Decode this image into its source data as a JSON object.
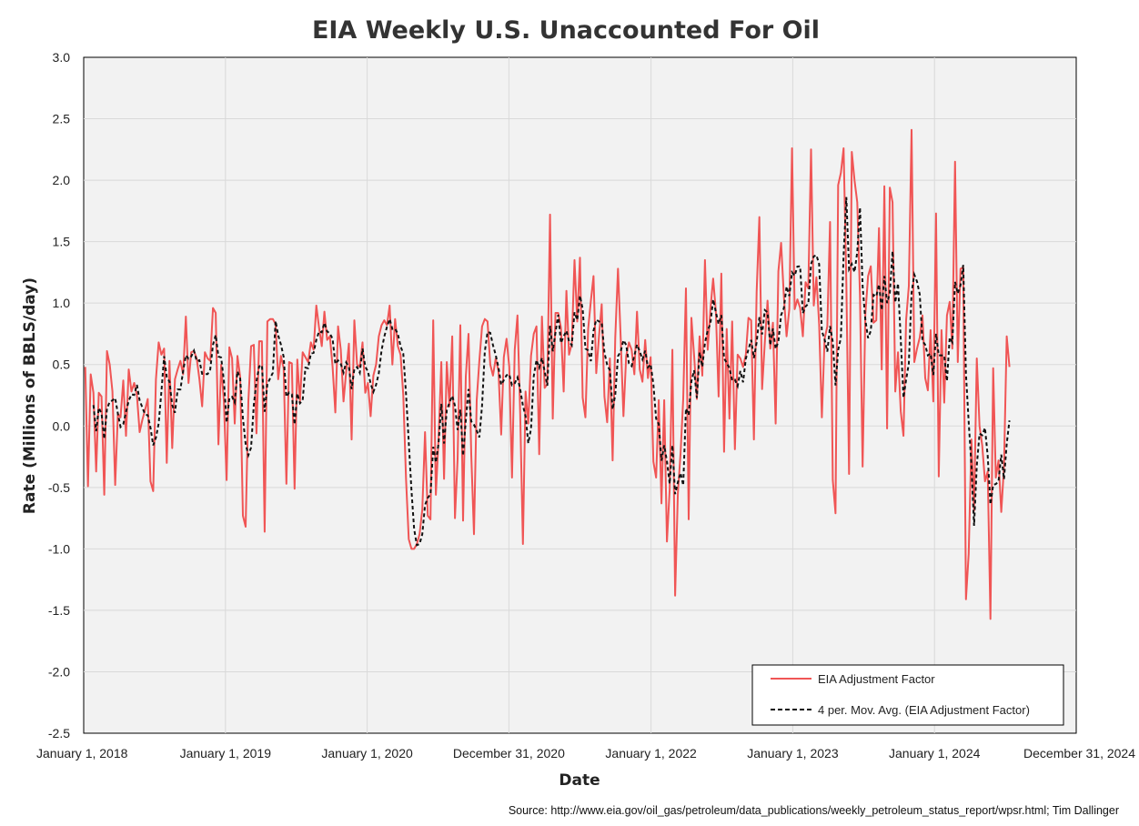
{
  "chart_data": {
    "type": "line",
    "title": "EIA Weekly U.S. Unaccounted For Oil",
    "xlabel": "Date",
    "ylabel": "Rate (Millions of BBLS/day)",
    "source": "Source: http://www.eia.gov/oil_gas/petroleum/data_publications/weekly_petroleum_status_report/wpsr.html; Tim Dallinger",
    "ylim": [
      -2.5,
      3.0
    ],
    "xlim": [
      "2018-01-01",
      "2024-12-31"
    ],
    "grid": true,
    "legend_position": "bottom-right",
    "x_tick_labels": [
      "January 1, 2018",
      "January 1, 2019",
      "January 1, 2020",
      "December 31, 2020",
      "January 1, 2022",
      "January 1, 2023",
      "January 1, 2024",
      "December 31, 2024"
    ],
    "y_tick_labels": [
      "3.0",
      "2.5",
      "2.0",
      "1.5",
      "1.0",
      "0.5",
      "0.0",
      "-0.5",
      "-1.0",
      "-1.5",
      "-2.0",
      "-2.5"
    ],
    "y_ticks": [
      3.0,
      2.5,
      2.0,
      1.5,
      1.0,
      0.5,
      0.0,
      -0.5,
      -1.0,
      -1.5,
      -2.0,
      -2.5
    ],
    "x_tick_dates": [
      "2018-01-01",
      "2019-01-01",
      "2020-01-01",
      "2020-12-31",
      "2022-01-01",
      "2023-01-01",
      "2024-01-01",
      "2024-12-31"
    ],
    "series": [
      {
        "name": "EIA Adjustment Factor",
        "color": "#f05555",
        "dash": "solid",
        "start_date": "2018-01-05",
        "interval_days": 7,
        "values": [
          0.48,
          -0.49,
          0.42,
          0.27,
          -0.37,
          0.27,
          0.24,
          -0.56,
          0.61,
          0.5,
          0.28,
          -0.48,
          0.1,
          0.07,
          0.37,
          -0.08,
          0.46,
          0.28,
          0.35,
          0.25,
          -0.05,
          0.05,
          0.13,
          0.22,
          -0.45,
          -0.53,
          0.38,
          0.68,
          0.58,
          0.63,
          -0.3,
          0.53,
          -0.18,
          0.38,
          0.46,
          0.53,
          0.42,
          0.89,
          0.35,
          0.6,
          0.61,
          0.55,
          0.38,
          0.16,
          0.6,
          0.55,
          0.53,
          0.96,
          0.92,
          -0.15,
          0.5,
          0.2,
          -0.44,
          0.64,
          0.55,
          0.02,
          0.57,
          0.4,
          -0.73,
          -0.82,
          0.2,
          0.65,
          0.66,
          -0.06,
          0.69,
          0.69,
          -0.86,
          0.85,
          0.87,
          0.87,
          0.83,
          0.38,
          0.57,
          0.47,
          -0.47,
          0.52,
          0.51,
          -0.51,
          0.54,
          0.2,
          0.6,
          0.56,
          0.52,
          0.68,
          0.62,
          0.98,
          0.8,
          0.65,
          0.93,
          0.7,
          0.73,
          0.48,
          0.11,
          0.81,
          0.62,
          0.2,
          0.44,
          0.67,
          -0.11,
          0.86,
          0.5,
          0.48,
          0.68,
          0.27,
          0.35,
          0.08,
          0.41,
          0.5,
          0.73,
          0.82,
          0.86,
          0.82,
          0.98,
          0.5,
          0.87,
          0.65,
          0.58,
          0.25,
          -0.43,
          -0.92,
          -1.0,
          -1.0,
          -0.96,
          -0.88,
          -0.68,
          -0.05,
          -0.73,
          -0.76,
          0.86,
          -0.56,
          -0.1,
          0.52,
          -0.43,
          0.52,
          0.16,
          0.73,
          -0.75,
          -0.27,
          0.82,
          -0.77,
          0.4,
          0.75,
          -0.23,
          -0.88,
          0.21,
          0.53,
          0.81,
          0.87,
          0.85,
          0.5,
          0.41,
          0.55,
          0.45,
          -0.07,
          0.56,
          0.71,
          0.48,
          -0.42,
          0.62,
          0.9,
          0.1,
          -0.96,
          0.28,
          0.02,
          0.57,
          0.75,
          0.81,
          -0.23,
          0.89,
          0.31,
          0.34,
          1.72,
          0.06,
          0.92,
          0.92,
          0.8,
          0.28,
          1.1,
          0.58,
          0.67,
          1.35,
          0.85,
          1.37,
          0.23,
          0.07,
          0.79,
          1.02,
          1.22,
          0.43,
          0.73,
          0.99,
          0.24,
          0.03,
          0.55,
          -0.28,
          0.72,
          1.28,
          0.71,
          0.08,
          0.57,
          0.68,
          0.62,
          0.42,
          0.93,
          0.46,
          0.36,
          0.7,
          0.39,
          0.56,
          -0.29,
          -0.42,
          0.21,
          -0.63,
          0.21,
          -0.94,
          -0.52,
          0.62,
          -1.38,
          -0.55,
          -0.22,
          0.22,
          1.12,
          -0.76,
          0.88,
          0.57,
          0.22,
          0.73,
          0.41,
          1.35,
          0.62,
          0.95,
          1.2,
          0.93,
          0.24,
          1.24,
          -0.21,
          0.79,
          0.06,
          0.85,
          -0.19,
          0.58,
          0.55,
          0.48,
          0.58,
          0.88,
          0.86,
          -0.11,
          1.09,
          1.7,
          0.3,
          0.68,
          1.02,
          0.63,
          0.84,
          0.02,
          1.26,
          1.49,
          1.06,
          0.73,
          0.95,
          2.26,
          0.95,
          1.03,
          0.96,
          0.73,
          1.17,
          1.12,
          2.25,
          0.98,
          1.21,
          0.83,
          0.07,
          0.71,
          0.81,
          1.66,
          -0.44,
          -0.71,
          1.96,
          2.06,
          2.26,
          1.17,
          -0.39,
          2.23,
          2.0,
          1.82,
          1.06,
          -0.33,
          0.91,
          1.22,
          1.3,
          0.84,
          0.86,
          1.61,
          0.46,
          1.95,
          -0.02,
          1.94,
          1.82,
          0.28,
          0.6,
          0.12,
          -0.08,
          0.86,
          1.14,
          2.41,
          0.52,
          0.63,
          0.72,
          0.9,
          0.39,
          0.29,
          0.78,
          0.2,
          1.73,
          -0.41,
          0.78,
          0.19,
          0.9,
          1.01,
          0.63,
          2.15,
          0.52,
          1.28,
          1.29,
          -1.41,
          -1.04,
          -0.11,
          -0.69,
          0.55,
          0.0,
          -0.16,
          -0.45,
          -0.37,
          -1.57,
          0.47,
          -0.42,
          -0.28,
          -0.7,
          -0.33,
          0.73,
          0.48
        ]
      },
      {
        "name": "4 per. Mov. Avg. (EIA Adjustment Factor)",
        "color": "#111111",
        "dash": "dashed",
        "window": 4
      }
    ]
  }
}
